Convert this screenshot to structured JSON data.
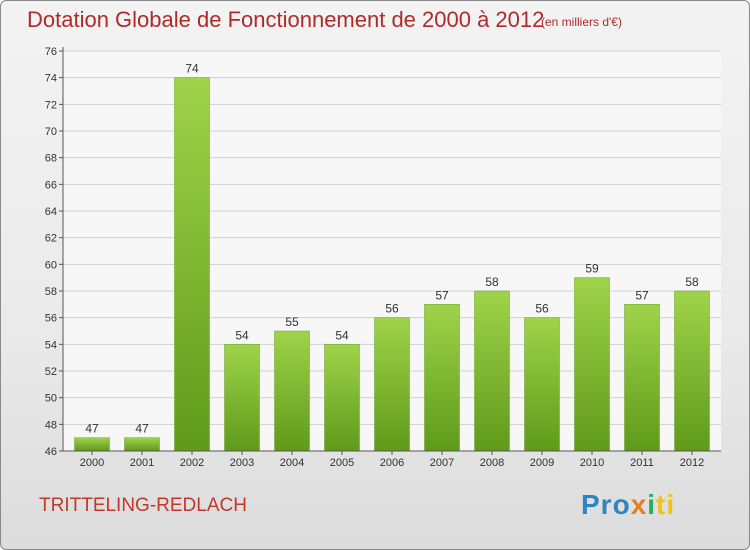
{
  "chart_data": {
    "type": "bar",
    "title": "Dotation Globale de Fonctionnement de 2000 à 2012",
    "subtitle": "(en milliers d'€)",
    "categories": [
      "2000",
      "2001",
      "2002",
      "2003",
      "2004",
      "2005",
      "2006",
      "2007",
      "2008",
      "2009",
      "2010",
      "2011",
      "2012"
    ],
    "values": [
      47,
      47,
      74,
      54,
      55,
      54,
      56,
      57,
      58,
      56,
      59,
      57,
      58
    ],
    "ylim": [
      46,
      76
    ],
    "yticks": [
      46,
      48,
      50,
      52,
      54,
      56,
      58,
      60,
      62,
      64,
      66,
      68,
      70,
      72,
      74,
      76
    ],
    "grid": true,
    "bar_color": "#7cb82f"
  },
  "commune": "TRITTELING-REDLACH",
  "logo": {
    "parts": [
      "Pro",
      "x",
      "i",
      "ti"
    ]
  }
}
